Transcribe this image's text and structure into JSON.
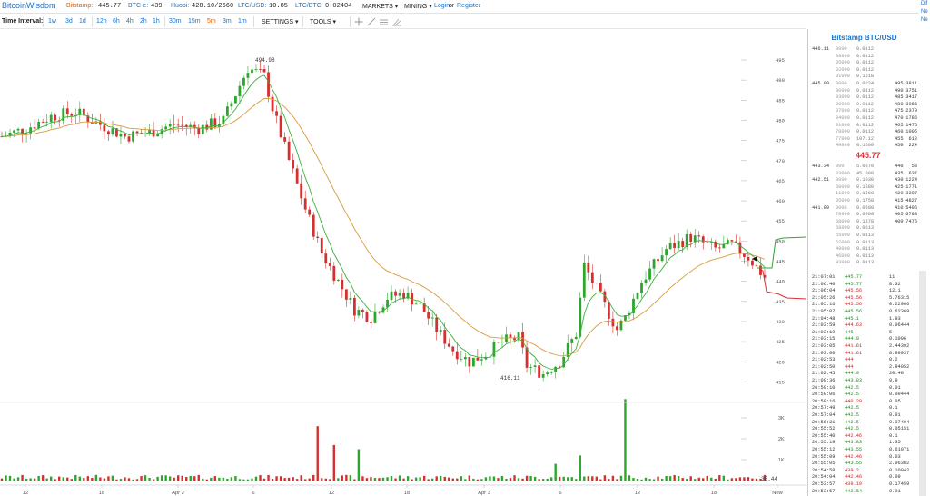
{
  "topbar": {
    "logo": "BitcoinWisdom",
    "bitstamp_label": "Bitstamp:",
    "bitstamp_value": "445.77",
    "btce_label": "BTC-e:",
    "btce_value": "439",
    "huobi_label": "Huobi:",
    "huobi_value": "428.10/2660",
    "ltcusd_label": "LTC/USD:",
    "ltcusd_value": "10.85",
    "ltcbtc_label": "LTC/BTC:",
    "ltcbtc_value": "0.02404",
    "markets": "MARKETS ▾",
    "mining": "MINING ▾",
    "login": "Login",
    "or": "or",
    "register": "Register"
  },
  "right_edge": [
    "Dif",
    "Ne",
    "Ne"
  ],
  "toolbar": {
    "label": "Time Interval:",
    "intervals": [
      "1w",
      "3d",
      "1d",
      "12h",
      "6h",
      "4h",
      "2h",
      "1h",
      "30m",
      "15m",
      "5m",
      "3m",
      "1m"
    ],
    "active_interval": "5m",
    "settings": "SETTINGS ▾",
    "tools": "TOOLS ▾"
  },
  "chart": {
    "high_label": "494.98",
    "low_label": "416.11",
    "vol_last_label": "38.44",
    "price_ticks": [
      495,
      490,
      485,
      480,
      475,
      470,
      465,
      460,
      455,
      450,
      445,
      440,
      435,
      430,
      425,
      420,
      415
    ],
    "volume_ticks": [
      "3K",
      "2K",
      "1K"
    ],
    "x_ticks": [
      "12",
      "18",
      "Apr 2",
      "6",
      "12",
      "18",
      "Apr 3",
      "6",
      "12",
      "18",
      "Now"
    ],
    "colors": {
      "up": "#2ea62e",
      "down": "#d43030",
      "ema_fast": "#3bb03b",
      "ema_slow": "#d99a3a"
    }
  },
  "chart_data": {
    "type": "candlestick",
    "title": "",
    "ylim": [
      413,
      498
    ],
    "price_path": [
      [
        0,
        476
      ],
      [
        6,
        478
      ],
      [
        12,
        481
      ],
      [
        18,
        482
      ],
      [
        24,
        479
      ],
      [
        30,
        476
      ],
      [
        36,
        477
      ],
      [
        42,
        479
      ],
      [
        48,
        478
      ],
      [
        54,
        480
      ],
      [
        60,
        493
      ],
      [
        64,
        491
      ],
      [
        66,
        483
      ],
      [
        70,
        470
      ],
      [
        74,
        458
      ],
      [
        78,
        447
      ],
      [
        82,
        440
      ],
      [
        86,
        433
      ],
      [
        90,
        431
      ],
      [
        94,
        436
      ],
      [
        98,
        437
      ],
      [
        102,
        434
      ],
      [
        106,
        428
      ],
      [
        110,
        423
      ],
      [
        114,
        420
      ],
      [
        118,
        422
      ],
      [
        122,
        425
      ],
      [
        126,
        426
      ],
      [
        128,
        419
      ],
      [
        132,
        417
      ],
      [
        136,
        420
      ],
      [
        140,
        427
      ],
      [
        142,
        444
      ],
      [
        146,
        436
      ],
      [
        150,
        428
      ],
      [
        152,
        431
      ],
      [
        156,
        440
      ],
      [
        162,
        448
      ],
      [
        168,
        451
      ],
      [
        174,
        448
      ],
      [
        178,
        449
      ],
      [
        182,
        446
      ],
      [
        186,
        441
      ]
    ],
    "volume_spikes": [
      [
        77,
        2.6
      ],
      [
        81,
        1.7
      ],
      [
        87,
        1.5
      ],
      [
        152,
        3.9
      ],
      [
        141,
        1.2
      ],
      [
        135,
        0.8
      ]
    ],
    "last_price": "445.77"
  },
  "orderbook": {
    "title": "Bitstamp BTC/USD",
    "asks": [
      [
        "446.11",
        "0000",
        "0.0112",
        "",
        ""
      ],
      [
        "",
        "08000",
        "0.0112",
        "",
        ""
      ],
      [
        "",
        "05000",
        "0.0112",
        "",
        ""
      ],
      [
        "",
        "02000",
        "0.0112",
        "",
        ""
      ],
      [
        "",
        "01000",
        "0.1510",
        "",
        ""
      ],
      [
        "445.99",
        "0000",
        "0.0224",
        "495",
        "3811"
      ],
      [
        "",
        "96000",
        "0.0112",
        "490",
        "3751"
      ],
      [
        "",
        "93000",
        "0.0112",
        "485",
        "3417"
      ],
      [
        "",
        "90000",
        "0.0112",
        "480",
        "3065"
      ],
      [
        "",
        "87000",
        "0.0112",
        "475",
        "2379"
      ],
      [
        "",
        "84000",
        "0.0112",
        "470",
        "1785"
      ],
      [
        "",
        "81000",
        "0.0112",
        "465",
        "1475"
      ],
      [
        "",
        "78000",
        "0.0112",
        "460",
        "1005"
      ],
      [
        "",
        "77000",
        "107.12",
        "455",
        "618"
      ],
      [
        "",
        "49000",
        "0.1600",
        "450",
        "224"
      ]
    ],
    "last": "445.77",
    "bids": [
      [
        "443.34",
        "000",
        "5.0870",
        "440",
        "53"
      ],
      [
        "",
        "33000",
        "45.000",
        "435",
        "637"
      ],
      [
        "442.51",
        "0000",
        "0.1030",
        "430",
        "1224"
      ],
      [
        "",
        "50000",
        "0.1680",
        "425",
        "1771"
      ],
      [
        "",
        "11000",
        "0.1590",
        "420",
        "3397"
      ],
      [
        "",
        "05000",
        "0.1750",
        "415",
        "4827"
      ],
      [
        "441.89",
        "0000",
        "0.0500",
        "410",
        "5496"
      ],
      [
        "",
        "78000",
        "0.0500",
        "405",
        "6788"
      ],
      [
        "",
        "68000",
        "0.1370",
        "400",
        "7475"
      ],
      [
        "",
        "58000",
        "0.0613",
        "",
        ""
      ],
      [
        "",
        "55000",
        "0.0113",
        "",
        ""
      ],
      [
        "",
        "52000",
        "0.0113",
        "",
        ""
      ],
      [
        "",
        "49000",
        "0.0113",
        "",
        ""
      ],
      [
        "",
        "46000",
        "0.0113",
        "",
        ""
      ],
      [
        "",
        "43000",
        "0.0113",
        "",
        ""
      ]
    ]
  },
  "trades": [
    [
      "21:07:01",
      "445.77",
      "11",
      "up"
    ],
    [
      "21:06:40",
      "445.77",
      "8.32",
      "up"
    ],
    [
      "21:06:04",
      "445.56",
      "12.1",
      "down"
    ],
    [
      "21:05:26",
      "445.56",
      "5.76315",
      "down"
    ],
    [
      "21:05:16",
      "445.56",
      "0.22966",
      "down"
    ],
    [
      "21:05:07",
      "445.56",
      "0.62369",
      "up"
    ],
    [
      "21:04:48",
      "445.1",
      "1.93",
      "up"
    ],
    [
      "21:03:59",
      "444.63",
      "0.06444",
      "down"
    ],
    [
      "21:03:19",
      "445",
      "5",
      "up"
    ],
    [
      "21:03:15",
      "444.9",
      "0.1006",
      "up"
    ],
    [
      "21:03:05",
      "441.61",
      "2.44392",
      "down"
    ],
    [
      "21:03:00",
      "441.61",
      "8.89937",
      "down"
    ],
    [
      "21:02:53",
      "444",
      "0.2",
      "down"
    ],
    [
      "21:02:50",
      "444",
      "2.94052",
      "down"
    ],
    [
      "21:02:45",
      "444.9",
      "20.48",
      "up"
    ],
    [
      "21:00:36",
      "443.83",
      "9.9",
      "up"
    ],
    [
      "20:59:10",
      "442.5",
      "0.01",
      "up"
    ],
    [
      "20:59:06",
      "442.5",
      "0.09444",
      "up"
    ],
    [
      "20:58:16",
      "440.29",
      "0.05",
      "down"
    ],
    [
      "20:57:49",
      "442.5",
      "0.1",
      "up"
    ],
    [
      "20:57:04",
      "442.5",
      "0.01",
      "up"
    ],
    [
      "20:56:21",
      "442.5",
      "0.07404",
      "up"
    ],
    [
      "20:55:52",
      "442.5",
      "0.05151",
      "up"
    ],
    [
      "20:55:40",
      "442.46",
      "0.1",
      "down"
    ],
    [
      "20:55:19",
      "443.83",
      "1.35",
      "up"
    ],
    [
      "20:55:12",
      "443.55",
      "0.61071",
      "up"
    ],
    [
      "20:55:09",
      "442.46",
      "0.03",
      "down"
    ],
    [
      "20:55:05",
      "443.55",
      "2.06382",
      "up"
    ],
    [
      "20:54:58",
      "439.2",
      "0.10042",
      "down"
    ],
    [
      "20:54:04",
      "442.46",
      "0.09",
      "down"
    ],
    [
      "20:53:57",
      "439.19",
      "0.17459",
      "down"
    ],
    [
      "20:53:57",
      "442.54",
      "0.01",
      "up"
    ]
  ]
}
